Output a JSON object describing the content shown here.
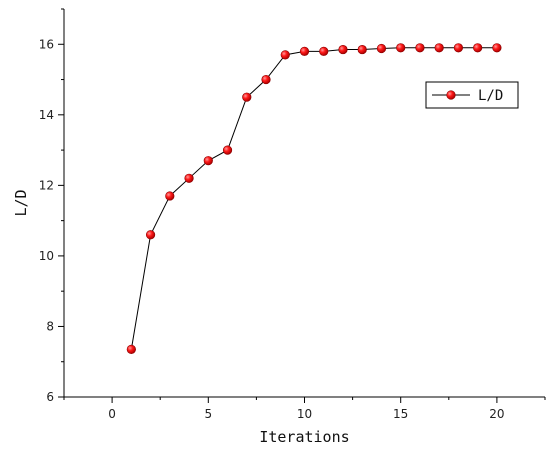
{
  "chart_data": {
    "type": "line",
    "title": "",
    "xlabel": "Iterations",
    "ylabel": "L/D",
    "xlim": [
      -2.5,
      22.5
    ],
    "ylim": [
      6,
      17
    ],
    "xticks": [
      0,
      5,
      10,
      15,
      20
    ],
    "yticks": [
      6,
      8,
      10,
      12,
      14,
      16
    ],
    "grid": false,
    "legend_position": "top-right",
    "series": [
      {
        "name": "L/D",
        "color": "#ff0000",
        "line_color": "#000000",
        "marker": "circle",
        "x": [
          1,
          2,
          3,
          4,
          5,
          6,
          7,
          8,
          9,
          10,
          11,
          12,
          13,
          14,
          15,
          16,
          17,
          18,
          19,
          20
        ],
        "y": [
          7.35,
          10.6,
          11.7,
          12.2,
          12.7,
          13.0,
          14.5,
          15.0,
          15.7,
          15.8,
          15.8,
          15.85,
          15.85,
          15.88,
          15.9,
          15.9,
          15.9,
          15.9,
          15.9,
          15.9
        ]
      }
    ]
  }
}
